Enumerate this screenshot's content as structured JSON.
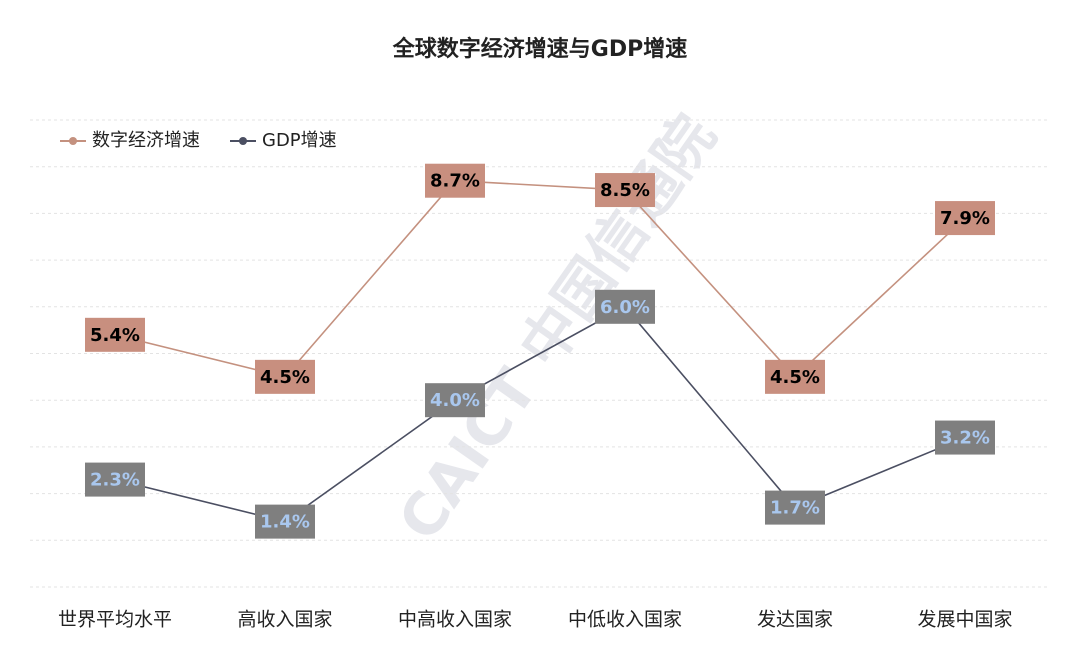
{
  "chart_data": {
    "type": "line",
    "title": "全球数字经济增速与GDP增速",
    "watermark": "CAICT 中国信通院",
    "categories": [
      "世界平均水平",
      "高收入国家",
      "中高收入国家",
      "中低收入国家",
      "发达国家",
      "发展中国家"
    ],
    "series": [
      {
        "name": "数字经济增速",
        "color": "#c4917f",
        "label_color": "#000000",
        "values": [
          5.4,
          4.5,
          8.7,
          8.5,
          4.5,
          7.9
        ],
        "value_labels": [
          "5.4%",
          "4.5%",
          "8.7%",
          "8.5%",
          "4.5%",
          "7.9%"
        ]
      },
      {
        "name": "GDP增速",
        "color": "#4b4f62",
        "label_color": "#a9c7ee",
        "values": [
          2.3,
          1.4,
          4.0,
          6.0,
          1.7,
          3.2
        ],
        "value_labels": [
          "2.3%",
          "1.4%",
          "4.0%",
          "6.0%",
          "1.7%",
          "3.2%"
        ]
      }
    ],
    "box_colors": [
      "#c88f7f",
      "#7f7f7f"
    ],
    "ylim": [
      0,
      10
    ],
    "yticks": [
      0,
      1,
      2,
      3,
      4,
      5,
      6,
      7,
      8,
      9,
      10
    ],
    "grid": true,
    "legend": "top-left"
  }
}
